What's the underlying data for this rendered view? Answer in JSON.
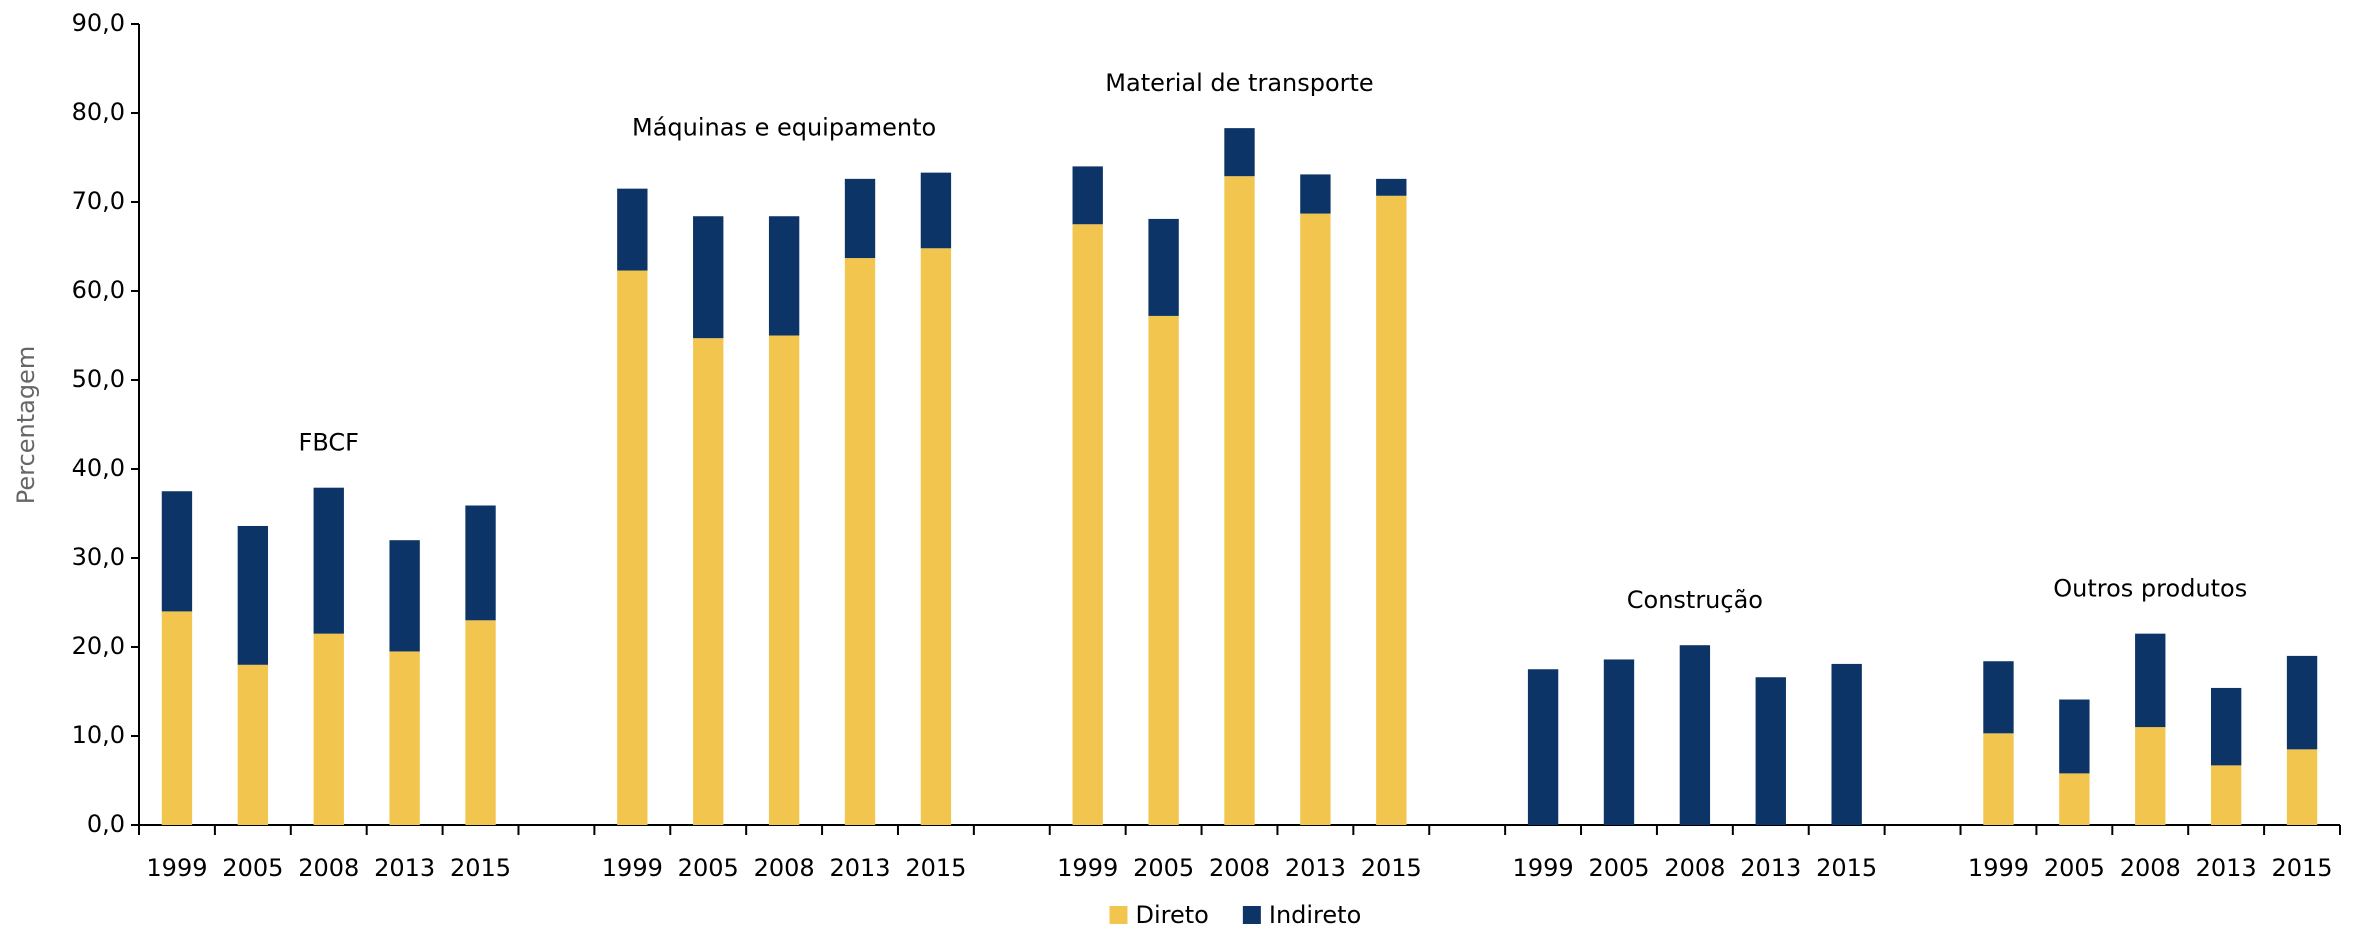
{
  "chart_data": {
    "type": "bar",
    "stacked": true,
    "y_label": "Percentagem",
    "categories": [
      "1999",
      "2005",
      "2008",
      "2013",
      "2015",
      null,
      "1999",
      "2005",
      "2008",
      "2013",
      "2015",
      null,
      "1999",
      "2005",
      "2008",
      "2013",
      "2015",
      null,
      "1999",
      "2005",
      "2008",
      "2013",
      "2015",
      null,
      "1999",
      "2005",
      "2008",
      "2013",
      "2015"
    ],
    "annotations": [
      "FBCF",
      "Máquinas e equipamento",
      "Material de transporte",
      "Construção",
      "Outros produtos"
    ],
    "series": [
      {
        "name": "Direto",
        "color": "#f2c54e",
        "values": [
          24.0,
          18.0,
          21.5,
          19.5,
          23.0,
          null,
          62.3,
          54.7,
          55.0,
          63.7,
          64.8,
          null,
          67.5,
          57.2,
          72.9,
          68.7,
          70.7,
          null,
          0,
          0,
          0,
          0,
          0,
          null,
          10.3,
          5.8,
          11.0,
          6.7,
          8.5
        ]
      },
      {
        "name": "Indireto",
        "color": "#0c3466",
        "values": [
          13.5,
          15.6,
          16.4,
          12.5,
          12.9,
          null,
          9.2,
          13.7,
          13.4,
          8.9,
          8.5,
          null,
          6.5,
          10.9,
          5.4,
          4.4,
          1.9,
          null,
          17.5,
          18.6,
          20.2,
          16.6,
          18.1,
          null,
          8.1,
          8.3,
          10.5,
          8.7,
          10.5
        ]
      }
    ],
    "ylim": [
      0,
      90
    ],
    "yticks": [
      {
        "value": 0,
        "label": "0,0"
      },
      {
        "value": 10,
        "label": "10,0"
      },
      {
        "value": 20,
        "label": "20,0"
      },
      {
        "value": 30,
        "label": "30,0"
      },
      {
        "value": 40,
        "label": "40,0"
      },
      {
        "value": 50,
        "label": "50,0"
      },
      {
        "value": 60,
        "label": "60,0"
      },
      {
        "value": 70,
        "label": "70,0"
      },
      {
        "value": 80,
        "label": "80,0"
      },
      {
        "value": 90,
        "label": "90,0"
      }
    ],
    "legend": "bottom"
  }
}
